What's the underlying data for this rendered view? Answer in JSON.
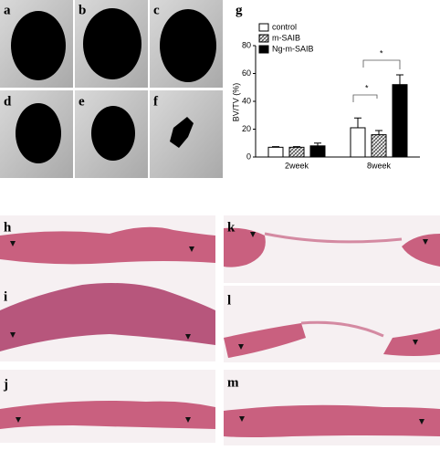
{
  "micro_ct": {
    "labels": [
      "a",
      "b",
      "c",
      "d",
      "e",
      "f"
    ]
  },
  "histology": {
    "labels": [
      "h",
      "i",
      "j",
      "k",
      "l",
      "m"
    ]
  },
  "chart_data": {
    "type": "bar",
    "panel_label": "g",
    "y_label": "BV/TV (%)",
    "categories": [
      "2week",
      "8week"
    ],
    "series": [
      {
        "name": "control",
        "color": "#ffffff",
        "pattern": "none",
        "values": [
          7,
          21
        ],
        "errors": [
          0.5,
          7
        ]
      },
      {
        "name": "m-SAIB",
        "color": "#888888",
        "pattern": "hatch",
        "values": [
          7,
          16
        ],
        "errors": [
          0.5,
          3
        ]
      },
      {
        "name": "Ng-m-SAIB",
        "color": "#000000",
        "pattern": "none",
        "values": [
          8,
          52
        ],
        "errors": [
          2,
          7
        ]
      }
    ],
    "annotations": [
      "*",
      "*"
    ],
    "ylim": [
      0,
      80
    ],
    "yticks": [
      0,
      20,
      40,
      60,
      80
    ],
    "grid": false,
    "legend": "top-left"
  }
}
